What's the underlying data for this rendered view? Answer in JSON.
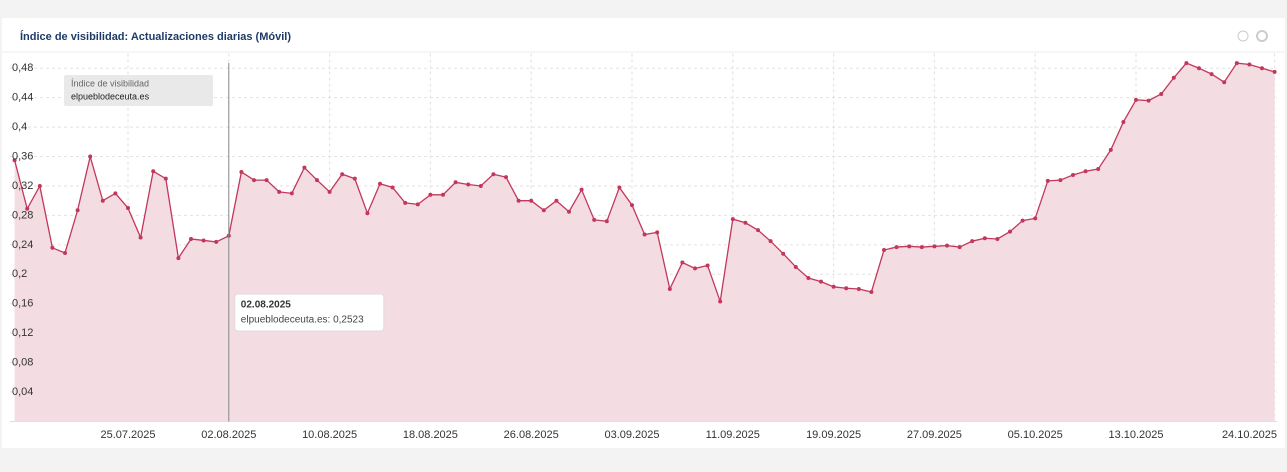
{
  "chart_data": {
    "type": "area",
    "title": "Índice de visibilidad: Actualizaciones diarias (Móvil)",
    "legend_title": "Índice de visibilidad",
    "x": [
      "16.07.2025",
      "17.07.2025",
      "18.07.2025",
      "19.07.2025",
      "20.07.2025",
      "21.07.2025",
      "22.07.2025",
      "23.07.2025",
      "24.07.2025",
      "25.07.2025",
      "26.07.2025",
      "27.07.2025",
      "28.07.2025",
      "29.07.2025",
      "30.07.2025",
      "31.07.2025",
      "01.08.2025",
      "02.08.2025",
      "03.08.2025",
      "04.08.2025",
      "05.08.2025",
      "06.08.2025",
      "07.08.2025",
      "08.08.2025",
      "09.08.2025",
      "10.08.2025",
      "11.08.2025",
      "12.08.2025",
      "13.08.2025",
      "14.08.2025",
      "15.08.2025",
      "16.08.2025",
      "17.08.2025",
      "18.08.2025",
      "19.08.2025",
      "20.08.2025",
      "21.08.2025",
      "22.08.2025",
      "23.08.2025",
      "24.08.2025",
      "25.08.2025",
      "26.08.2025",
      "27.08.2025",
      "28.08.2025",
      "29.08.2025",
      "30.08.2025",
      "31.08.2025",
      "01.09.2025",
      "02.09.2025",
      "03.09.2025",
      "04.09.2025",
      "05.09.2025",
      "06.09.2025",
      "07.09.2025",
      "08.09.2025",
      "09.09.2025",
      "10.09.2025",
      "11.09.2025",
      "12.09.2025",
      "13.09.2025",
      "14.09.2025",
      "15.09.2025",
      "16.09.2025",
      "17.09.2025",
      "18.09.2025",
      "19.09.2025",
      "20.09.2025",
      "21.09.2025",
      "22.09.2025",
      "23.09.2025",
      "24.09.2025",
      "25.09.2025",
      "26.09.2025",
      "27.09.2025",
      "28.09.2025",
      "29.09.2025",
      "30.09.2025",
      "01.10.2025",
      "02.10.2025",
      "03.10.2025",
      "04.10.2025",
      "05.10.2025",
      "06.10.2025",
      "07.10.2025",
      "08.10.2025",
      "09.10.2025",
      "10.10.2025",
      "11.10.2025",
      "12.10.2025",
      "13.10.2025",
      "14.10.2025",
      "15.10.2025",
      "16.10.2025",
      "17.10.2025",
      "18.10.2025",
      "19.10.2025",
      "20.10.2025",
      "21.10.2025",
      "22.10.2025",
      "23.10.2025",
      "24.10.2025"
    ],
    "series": [
      {
        "name": "elpueblodeceuta.es",
        "color": "#c2375c",
        "fill": "#f4dde2",
        "values": [
          0.355,
          0.289,
          0.32,
          0.236,
          0.229,
          0.287,
          0.36,
          0.3,
          0.31,
          0.29,
          0.25,
          0.34,
          0.33,
          0.222,
          0.248,
          0.246,
          0.244,
          0.2523,
          0.339,
          0.328,
          0.328,
          0.312,
          0.31,
          0.345,
          0.328,
          0.312,
          0.336,
          0.33,
          0.283,
          0.323,
          0.318,
          0.297,
          0.295,
          0.308,
          0.308,
          0.325,
          0.322,
          0.32,
          0.336,
          0.332,
          0.3,
          0.3,
          0.287,
          0.3,
          0.285,
          0.315,
          0.274,
          0.272,
          0.318,
          0.294,
          0.254,
          0.257,
          0.18,
          0.216,
          0.208,
          0.212,
          0.163,
          0.275,
          0.27,
          0.26,
          0.245,
          0.228,
          0.21,
          0.195,
          0.19,
          0.183,
          0.181,
          0.18,
          0.176,
          0.233,
          0.237,
          0.238,
          0.237,
          0.238,
          0.239,
          0.237,
          0.245,
          0.249,
          0.248,
          0.258,
          0.273,
          0.276,
          0.327,
          0.328,
          0.335,
          0.34,
          0.343,
          0.369,
          0.407,
          0.437,
          0.436,
          0.445,
          0.467,
          0.487,
          0.48,
          0.472,
          0.461,
          0.487,
          0.485,
          0.48,
          0.475
        ]
      }
    ],
    "xticks": [
      "25.07.2025",
      "02.08.2025",
      "10.08.2025",
      "18.08.2025",
      "26.08.2025",
      "03.09.2025",
      "11.09.2025",
      "19.09.2025",
      "27.09.2025",
      "05.10.2025",
      "13.10.2025",
      "24.10.2025"
    ],
    "ylim": [
      0,
      0.5
    ],
    "yticks": [
      {
        "value": 0.04,
        "label": "0,04"
      },
      {
        "value": 0.08,
        "label": "0,08"
      },
      {
        "value": 0.12,
        "label": "0,12"
      },
      {
        "value": 0.16,
        "label": "0,16"
      },
      {
        "value": 0.2,
        "label": "0,2"
      },
      {
        "value": 0.24,
        "label": "0,24"
      },
      {
        "value": 0.28,
        "label": "0,28"
      },
      {
        "value": 0.32,
        "label": "0,32"
      },
      {
        "value": 0.36,
        "label": "0,36"
      },
      {
        "value": 0.4,
        "label": "0,4"
      },
      {
        "value": 0.44,
        "label": "0,44"
      },
      {
        "value": 0.48,
        "label": "0,48"
      }
    ],
    "grid": true,
    "tooltip": {
      "title": "02.08.2025",
      "text": "elpueblodeceuta.es: 0,2523"
    }
  }
}
